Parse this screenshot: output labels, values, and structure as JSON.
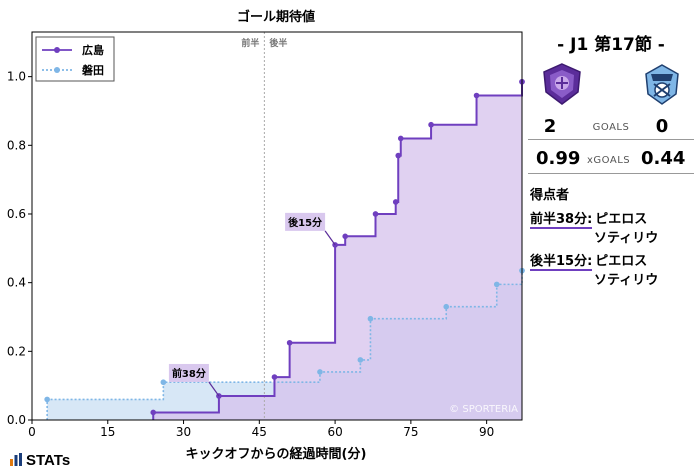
{
  "chart_data": {
    "type": "line",
    "title": "ゴール期待値",
    "xlabel": "キックオフからの経過時間(分)",
    "ylabel": "",
    "xlim": [
      0,
      97
    ],
    "ylim": [
      0,
      1.13
    ],
    "x_ticks": [
      0,
      15,
      30,
      45,
      60,
      75,
      90
    ],
    "y_ticks": [
      0.0,
      0.2,
      0.4,
      0.6,
      0.8,
      1.0
    ],
    "halftime_line_x": 46,
    "halftime_labels": [
      "前半",
      "後半"
    ],
    "watermark": "© SPORTERIA",
    "legend_position": "top-left",
    "series": [
      {
        "name": "広島",
        "color": "#6f3fbf",
        "fill": "#d6c2ec",
        "style": "solid",
        "points": [
          [
            24,
            0.0
          ],
          [
            24,
            0.022
          ],
          [
            37,
            0.022
          ],
          [
            37,
            0.07
          ],
          [
            48,
            0.07
          ],
          [
            48,
            0.125
          ],
          [
            51,
            0.125
          ],
          [
            51,
            0.225
          ],
          [
            60,
            0.225
          ],
          [
            60,
            0.51
          ],
          [
            62,
            0.51
          ],
          [
            62,
            0.535
          ],
          [
            68,
            0.535
          ],
          [
            68,
            0.6
          ],
          [
            72,
            0.6
          ],
          [
            72,
            0.635
          ],
          [
            72.5,
            0.635
          ],
          [
            72.5,
            0.77
          ],
          [
            73,
            0.77
          ],
          [
            73,
            0.82
          ],
          [
            79,
            0.82
          ],
          [
            79,
            0.86
          ],
          [
            88,
            0.86
          ],
          [
            88,
            0.945
          ],
          [
            97,
            0.945
          ],
          [
            97,
            0.985
          ],
          [
            98,
            0.985
          ]
        ],
        "markers": [
          [
            24,
            0.022
          ],
          [
            37,
            0.07
          ],
          [
            48,
            0.125
          ],
          [
            51,
            0.225
          ],
          [
            60,
            0.51
          ],
          [
            62,
            0.535
          ],
          [
            68,
            0.6
          ],
          [
            72,
            0.635
          ],
          [
            72.5,
            0.77
          ],
          [
            73,
            0.82
          ],
          [
            79,
            0.86
          ],
          [
            88,
            0.945
          ],
          [
            97,
            0.985
          ],
          [
            98,
            0.985
          ]
        ]
      },
      {
        "name": "磐田",
        "color": "#7fb6e6",
        "fill": "#d5e6f5",
        "style": "dotted",
        "points": [
          [
            3,
            0.0
          ],
          [
            3,
            0.06
          ],
          [
            26,
            0.06
          ],
          [
            26,
            0.11
          ],
          [
            57,
            0.11
          ],
          [
            57,
            0.14
          ],
          [
            65,
            0.14
          ],
          [
            65,
            0.175
          ],
          [
            67,
            0.175
          ],
          [
            67,
            0.295
          ],
          [
            82,
            0.295
          ],
          [
            82,
            0.33
          ],
          [
            92,
            0.33
          ],
          [
            92,
            0.395
          ],
          [
            97,
            0.395
          ],
          [
            97,
            0.435
          ],
          [
            98,
            0.435
          ]
        ],
        "markers": [
          [
            3,
            0.06
          ],
          [
            26,
            0.11
          ],
          [
            57,
            0.14
          ],
          [
            65,
            0.175
          ],
          [
            67,
            0.295
          ],
          [
            82,
            0.33
          ],
          [
            92,
            0.395
          ],
          [
            97,
            0.435
          ],
          [
            98,
            0.435
          ]
        ]
      }
    ],
    "annotations": [
      {
        "text": "前38分",
        "x": 37,
        "y": 0.07
      },
      {
        "text": "後15分",
        "x": 60,
        "y": 0.51
      }
    ]
  },
  "match": {
    "title": "- J1 第17節 -",
    "home_score": "2",
    "away_score": "0",
    "goals_label": "GOALS",
    "home_xg": "0.99",
    "away_xg": "0.44",
    "xg_label": "xGOALS",
    "home_crest_icon": "sanfrecce-crest-icon",
    "away_crest_icon": "jubilo-crest-icon"
  },
  "scorers": {
    "heading": "得点者",
    "goals": [
      {
        "time": "前半38分:",
        "player_line1": "ピエロス",
        "player_line2": "ソティリウ"
      },
      {
        "time": "後半15分:",
        "player_line1": "ピエロス",
        "player_line2": "ソティリウ"
      }
    ]
  },
  "brand": {
    "logo_text": "STATs",
    "logo_icon": "stats-bars-icon"
  }
}
